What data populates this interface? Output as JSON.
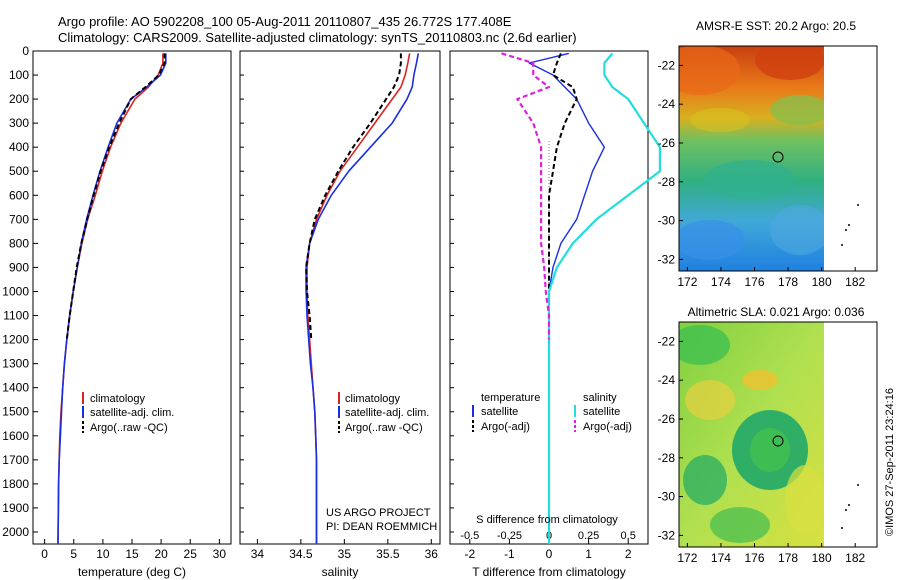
{
  "header": {
    "line1": "Argo profile: AO 5902208_100 05-Aug-2011 20110807_435 26.772S 177.408E",
    "line2": "Climatology: CARS2009. Satellite-adjusted climatology: synTS_20110803.nc (2.6d earlier)"
  },
  "colors": {
    "climatology": "#dd2222",
    "satellite": "#1a2ee0",
    "argo": "#000000",
    "cyan": "#22dddd",
    "magenta": "#dd22dd"
  },
  "footer": {
    "project": "US ARGO PROJECT",
    "pi": "PI: DEAN ROEMMICH",
    "credit": "©IMOS 27-Sep-2011 23:24:16"
  },
  "chart_data": [
    {
      "type": "line",
      "xlabel": "temperature (deg C)",
      "ylabel": "",
      "xlim": [
        -2,
        32
      ],
      "xticks": [
        "0",
        "5",
        "10",
        "15",
        "20",
        "25",
        "30"
      ],
      "ylim": [
        2050,
        0
      ],
      "yticks": [
        "0",
        "100",
        "200",
        "300",
        "400",
        "500",
        "600",
        "700",
        "800",
        "900",
        "1000",
        "1100",
        "1200",
        "1300",
        "1400",
        "1500",
        "1600",
        "1700",
        "1800",
        "1900",
        "2000"
      ],
      "legend": [
        "climatology",
        "satellite-adj. clim.",
        "Argo(..raw -QC)"
      ],
      "legend_position": "lower-middle",
      "series": [
        {
          "name": "climatology",
          "x": [
            20.3,
            20.3,
            19.5,
            17.8,
            15.5,
            13.1,
            11.3,
            9.9,
            8.7,
            7.4,
            6.4,
            5.6,
            4.9,
            4.3,
            3.8,
            3.4,
            3.1,
            2.8,
            2.6,
            2.5,
            2.4,
            2.3
          ],
          "y": [
            10,
            50,
            100,
            150,
            200,
            300,
            400,
            500,
            600,
            700,
            800,
            900,
            1000,
            1100,
            1200,
            1300,
            1400,
            1500,
            1600,
            1700,
            1800,
            2050
          ]
        },
        {
          "name": "satellite-adj. clim.",
          "x": [
            20.8,
            20.8,
            19.9,
            17.5,
            14.8,
            12.4,
            10.9,
            9.5,
            8.3,
            7.2,
            6.3,
            5.6,
            4.9,
            4.3,
            3.8,
            3.4,
            3.1,
            2.9,
            2.7,
            2.5,
            2.4,
            2.3
          ],
          "y": [
            10,
            50,
            100,
            150,
            200,
            300,
            400,
            500,
            600,
            700,
            800,
            900,
            1000,
            1100,
            1200,
            1300,
            1400,
            1500,
            1600,
            1700,
            1800,
            2050
          ]
        },
        {
          "name": "Argo(..raw -QC)",
          "x": [
            20.6,
            20.6,
            19.6,
            17.3,
            14.8,
            12.8,
            11.1,
            9.6,
            8.4,
            7.3,
            6.3,
            5.5,
            4.9,
            4.3,
            3.8
          ],
          "y": [
            10,
            50,
            100,
            150,
            200,
            300,
            400,
            500,
            600,
            700,
            800,
            900,
            1000,
            1100,
            1200
          ]
        }
      ]
    },
    {
      "type": "line",
      "xlabel": "salinity",
      "xlim": [
        33.8,
        36.1
      ],
      "xticks": [
        "34",
        "34.5",
        "35",
        "35.5",
        "36"
      ],
      "ylim": [
        2050,
        0
      ],
      "legend": [
        "climatology",
        "satellite-adj. clim.",
        "Argo(..raw -QC)"
      ],
      "legend_position": "lower-middle",
      "series": [
        {
          "name": "climatology",
          "x": [
            35.75,
            35.73,
            35.7,
            35.65,
            35.55,
            35.35,
            35.15,
            34.95,
            34.8,
            34.68,
            34.6,
            34.57,
            34.57,
            34.58,
            34.6,
            34.62,
            34.64,
            34.66,
            34.67,
            34.68,
            34.68,
            34.68
          ],
          "y": [
            10,
            50,
            100,
            150,
            200,
            300,
            400,
            500,
            600,
            700,
            800,
            900,
            1000,
            1100,
            1200,
            1300,
            1400,
            1500,
            1600,
            1700,
            1800,
            2050
          ]
        },
        {
          "name": "satellite-adj. clim.",
          "x": [
            35.85,
            35.83,
            35.8,
            35.78,
            35.72,
            35.55,
            35.3,
            35.05,
            34.85,
            34.7,
            34.6,
            34.56,
            34.56,
            34.57,
            34.59,
            34.61,
            34.64,
            34.66,
            34.67,
            34.68,
            34.68,
            34.68
          ],
          "y": [
            10,
            50,
            100,
            150,
            200,
            300,
            400,
            500,
            600,
            700,
            800,
            900,
            1000,
            1100,
            1200,
            1300,
            1400,
            1500,
            1600,
            1700,
            1800,
            2050
          ]
        },
        {
          "name": "Argo(..raw -QC)",
          "x": [
            35.65,
            35.65,
            35.63,
            35.57,
            35.48,
            35.3,
            35.1,
            34.93,
            34.78,
            34.66,
            34.6,
            34.56,
            34.57,
            34.6,
            34.62
          ],
          "y": [
            10,
            50,
            100,
            150,
            200,
            300,
            400,
            500,
            600,
            700,
            800,
            900,
            1000,
            1100,
            1200
          ]
        }
      ]
    },
    {
      "type": "line",
      "xlabel": "T difference from climatology",
      "xlabel2": "S difference from climatology",
      "xlim": [
        -2.5,
        2.5
      ],
      "xticks": [
        "-2",
        "-1",
        "0",
        "1",
        "2"
      ],
      "xticks2": [
        "-0.5",
        "-0.25",
        "0",
        "0.25",
        "0.5"
      ],
      "ylim": [
        2050,
        0
      ],
      "legend_groups": [
        {
          "title": "temperature",
          "items": [
            "satellite",
            "Argo(-adj)"
          ]
        },
        {
          "title": "salinity",
          "items": [
            "satellite",
            "Argo(-adj)"
          ]
        }
      ],
      "legend_position": "lower-middle",
      "series": [
        {
          "name": "satellite",
          "group": "temperature",
          "x": [
            0.5,
            -0.5,
            0.1,
            0.4,
            0.7,
            1.0,
            1.4,
            1.1,
            0.9,
            0.7,
            0.3,
            0.1,
            0,
            0,
            0,
            0,
            0,
            0,
            0,
            0,
            0,
            0
          ],
          "y": [
            10,
            50,
            100,
            150,
            200,
            300,
            400,
            500,
            600,
            700,
            800,
            900,
            1000,
            1100,
            1200,
            1300,
            1400,
            1500,
            1600,
            1700,
            1800,
            2050
          ]
        },
        {
          "name": "Argo(-adj)",
          "group": "temperature",
          "x": [
            0.3,
            0.2,
            0.1,
            0.6,
            0.7,
            0.4,
            0.2,
            0.1,
            0,
            0,
            0,
            0,
            0,
            0,
            0
          ],
          "y": [
            10,
            50,
            100,
            150,
            200,
            300,
            400,
            500,
            600,
            700,
            800,
            900,
            1000,
            1100,
            1200
          ]
        },
        {
          "name": "satellite",
          "group": "salinity",
          "x": [
            0.4,
            0.35,
            0.35,
            0.4,
            0.5,
            0.6,
            0.7,
            0.7,
            0.5,
            0.3,
            0.15,
            0.05,
            0,
            0,
            0,
            0,
            0,
            0,
            0,
            0,
            0,
            0
          ],
          "y": [
            10,
            50,
            100,
            150,
            200,
            300,
            400,
            500,
            600,
            700,
            800,
            900,
            1000,
            1100,
            1200,
            1300,
            1400,
            1500,
            1600,
            1700,
            1800,
            2050
          ]
        },
        {
          "name": "Argo(-adj)",
          "group": "salinity",
          "x": [
            -0.3,
            -0.1,
            -0.1,
            0,
            -0.2,
            -0.1,
            -0.05,
            -0.05,
            -0.05,
            -0.05,
            -0.05,
            -0.03,
            -0.02,
            0,
            0
          ],
          "y": [
            10,
            50,
            100,
            150,
            200,
            300,
            400,
            500,
            600,
            700,
            800,
            900,
            1000,
            1100,
            1200
          ]
        }
      ]
    },
    {
      "type": "heatmap",
      "title": "AMSR-E SST: 20.2 Argo: 20.5",
      "xlim": [
        171.5,
        183.3
      ],
      "xticks": [
        "172",
        "174",
        "176",
        "178",
        "180",
        "182"
      ],
      "ylim": [
        -32.6,
        -21.0
      ],
      "yticks": [
        "-22",
        "-24",
        "-26",
        "-28",
        "-30",
        "-32"
      ],
      "marker": {
        "lon": 177.4,
        "lat": -26.77
      }
    },
    {
      "type": "heatmap",
      "title": "Altimetric SLA: 0.021 Argo: 0.036",
      "xlim": [
        171.5,
        183.3
      ],
      "xticks": [
        "172",
        "174",
        "176",
        "178",
        "180",
        "182"
      ],
      "ylim": [
        -32.6,
        -21.0
      ],
      "yticks": [
        "-22",
        "-24",
        "-26",
        "-28",
        "-30",
        "-32"
      ],
      "marker": {
        "lon": 177.4,
        "lat": -26.77
      }
    }
  ]
}
